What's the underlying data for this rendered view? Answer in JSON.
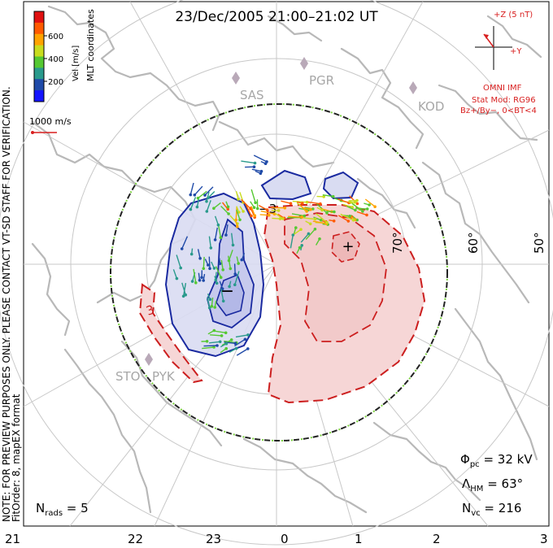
{
  "title": "23/Dec/2005 21:00–21:02 UT",
  "side_note": "NOTE: FOR PREVIEW PURPOSES ONLY. PLEASE CONTACT VT-SD STAFF FOR VERIFICATION.",
  "fit_note": "FitOrder: 8, mapEX format",
  "coords_label": "MLT coordinates",
  "colorbar": {
    "label": "Vel [m/s]",
    "ticks": [
      "600",
      "400",
      "200"
    ],
    "colors": [
      "#e01010",
      "#ff5a00",
      "#ffa300",
      "#c8dc1e",
      "#55c832",
      "#2a9a8c",
      "#1f4aa8",
      "#1414ff"
    ]
  },
  "scale_vector": {
    "label": "1000 m/s"
  },
  "imf": {
    "header": "+Z (5 nT)",
    "y_label": "+Y",
    "source": "OMNI IMF",
    "model_line1": "Stat Mod: RG96",
    "model_line2": "Bz+/By−, 0<BT<4"
  },
  "stations": [
    "SAS",
    "PGR",
    "KOD",
    "STO",
    "PYK"
  ],
  "latitude_labels": [
    "70°",
    "60°",
    "50°"
  ],
  "contour_labels": [
    "−3",
    "3"
  ],
  "extrema_marks": {
    "max": "+",
    "min": "−"
  },
  "stats": {
    "phi_symbol": "Φ",
    "phi_sub": "pc",
    "phi_value": " = 32 kV",
    "lambda_symbol": "Λ",
    "lambda_sub": "HM",
    "lambda_value": " = 63°",
    "nvc_symbol": "N",
    "nvc_sub": "vc",
    "nvc_value": " = 216",
    "nrads_symbol": "N",
    "nrads_sub": "rads",
    "nrads_value": " = 5"
  },
  "mlt_axis": [
    "21",
    "22",
    "23",
    "0",
    "1",
    "2",
    "3"
  ],
  "colors": {
    "positive_cell": "#cc1f1f",
    "negative_cell": "#1a2aa0",
    "coast": "#b8b8b8",
    "grid": "#c8c8c8",
    "hmb": "#222222",
    "imf": "#d81f1f"
  }
}
